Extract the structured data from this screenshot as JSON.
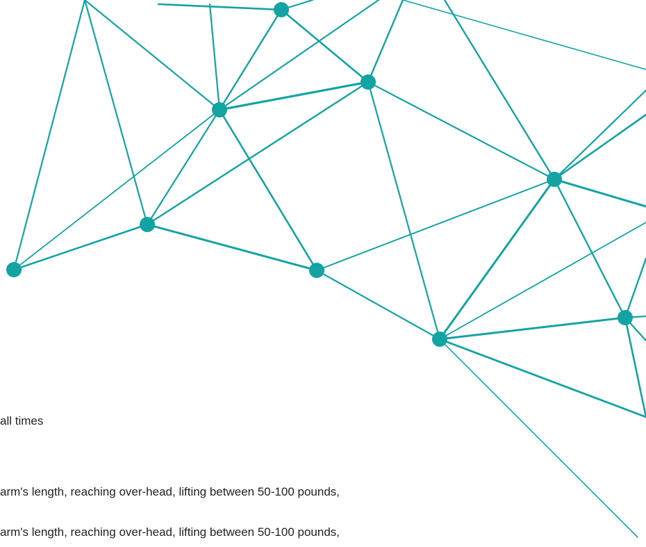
{
  "decoration": {
    "name": "network-graphic",
    "color": "#13a3a3"
  },
  "text_lines": [
    "all times",
    "arm's length, reaching over-head, lifting between 50-100 pounds,",
    "arm's length, reaching over-head, lifting between 50-100 pounds,"
  ]
}
